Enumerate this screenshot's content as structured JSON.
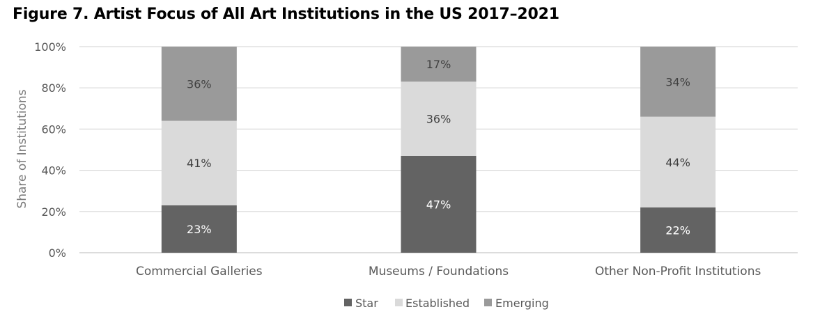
{
  "chart_data": {
    "type": "bar",
    "stacked": true,
    "title": "Figure 7. Artist Focus of All Art Institutions in the US 2017–2021",
    "xlabel": "",
    "ylabel": "Share of Institutions",
    "ylim": [
      0,
      100
    ],
    "yticks": [
      "0%",
      "20%",
      "40%",
      "60%",
      "80%",
      "100%"
    ],
    "grid": true,
    "legend_position": "bottom",
    "categories": [
      "Commercial Galleries",
      "Museums / Foundations",
      "Other Non-Profit Institutions"
    ],
    "series": [
      {
        "name": "Star",
        "values": [
          23,
          47,
          22
        ],
        "labels": [
          "23%",
          "47%",
          "22%"
        ],
        "color": "#636363"
      },
      {
        "name": "Established",
        "values": [
          41,
          36,
          44
        ],
        "labels": [
          "41%",
          "36%",
          "44%"
        ],
        "color": "#dadada"
      },
      {
        "name": "Emerging",
        "values": [
          36,
          17,
          34
        ],
        "labels": [
          "36%",
          "17%",
          "34%"
        ],
        "color": "#9a9a9a"
      }
    ]
  }
}
